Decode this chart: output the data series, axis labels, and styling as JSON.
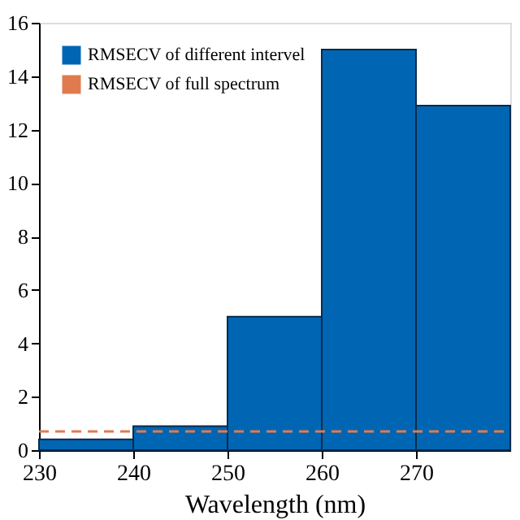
{
  "chart_data": {
    "type": "histogram",
    "xlabel": "Wavelength (nm)",
    "bins": [
      230,
      240,
      250,
      260,
      270,
      280
    ],
    "series": [
      {
        "name": "RMSECV of different intervel",
        "color": "#0066b3",
        "values": [
          0.4,
          0.9,
          5.0,
          15.0,
          12.9
        ]
      }
    ],
    "ref_lines": [
      {
        "axis": "y",
        "value": 0.7,
        "label": "RMSECV of full spectrum",
        "color": "#e07b4f",
        "line_style": "dashed"
      }
    ],
    "xlim": [
      230,
      280
    ],
    "xticks": [
      230,
      240,
      250,
      260,
      270
    ],
    "ylim": [
      0,
      16
    ],
    "yticks": [
      0,
      2,
      4,
      6,
      8,
      10,
      12,
      14,
      16
    ],
    "grid": false,
    "legend": "top left"
  }
}
